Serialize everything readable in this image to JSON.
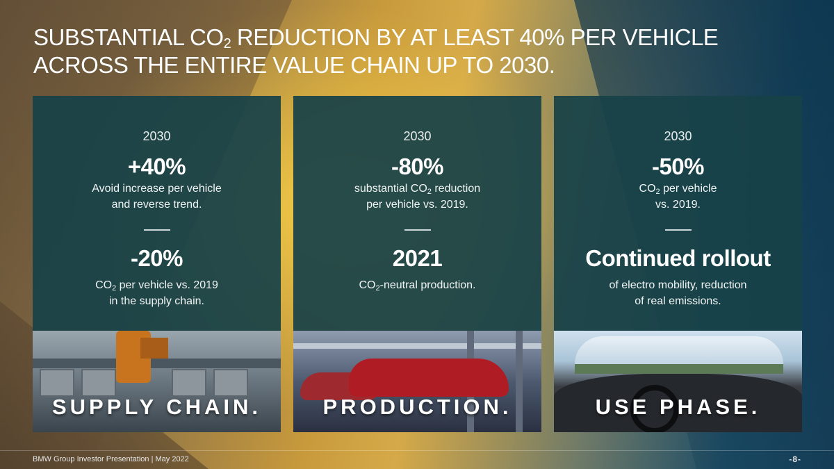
{
  "title": {
    "line1_pre": "SUBSTANTIAL CO",
    "line1_sub": "2",
    "line1_post": " REDUCTION BY AT LEAST 40% PER VEHICLE",
    "line2": "ACROSS THE ENTIRE VALUE CHAIN UP TO 2030."
  },
  "panels": [
    {
      "year": "2030",
      "figure1": "+40%",
      "desc1_line1": "Avoid increase per vehicle",
      "desc1_line2": "and reverse trend.",
      "figure2": "-20%",
      "desc2_line1_pre": "CO",
      "desc2_line1_sub": "2",
      "desc2_line1_post": " per vehicle vs. 2019",
      "desc2_line2": "in the supply chain.",
      "label": "SUPPLY CHAIN."
    },
    {
      "year": "2030",
      "figure1": "-80%",
      "desc1_line1_pre": "substantial CO",
      "desc1_line1_sub": "2",
      "desc1_line1_post": " reduction",
      "desc1_line2": "per vehicle vs. 2019.",
      "figure2": "2021",
      "desc2_line1_pre": "CO",
      "desc2_line1_sub": "2",
      "desc2_line1_post": "-neutral production.",
      "label": "PRODUCTION."
    },
    {
      "year": "2030",
      "figure1": "-50%",
      "desc1_line1_pre": "CO",
      "desc1_line1_sub": "2",
      "desc1_line1_post": " per vehicle",
      "desc1_line2": "vs. 2019.",
      "figure2": "Continued rollout",
      "desc2_line1": "of electro mobility, reduction",
      "desc2_line2": "of real emissions.",
      "label": "USE PHASE."
    }
  ],
  "footer": {
    "text": "BMW Group Investor Presentation | May 2022",
    "page": "-8-"
  }
}
